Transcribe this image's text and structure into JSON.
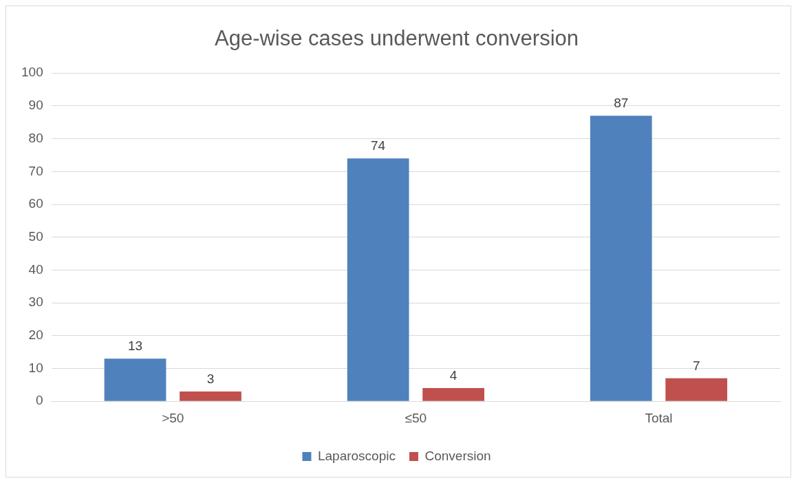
{
  "chart_data": {
    "type": "bar",
    "title": "Age-wise cases underwent conversion",
    "categories": [
      ">50",
      "≤50",
      "Total"
    ],
    "series": [
      {
        "name": "Laparoscopic",
        "color": "#4f81bd",
        "values": [
          13,
          74,
          87
        ]
      },
      {
        "name": "Conversion",
        "color": "#c0504d",
        "values": [
          3,
          4,
          7
        ]
      }
    ],
    "ylim": [
      0,
      100
    ],
    "yticks": [
      0,
      10,
      20,
      30,
      40,
      50,
      60,
      70,
      80,
      90,
      100
    ],
    "grid": "y",
    "legend": "bottom",
    "data_labels": true
  }
}
